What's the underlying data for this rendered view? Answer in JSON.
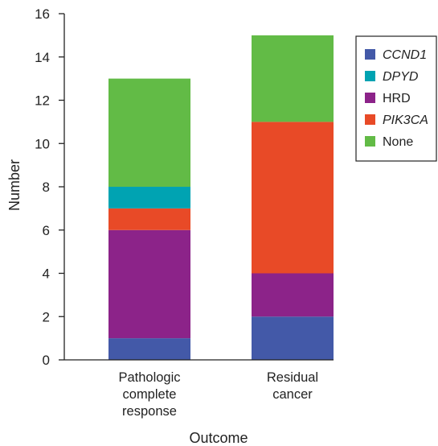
{
  "chart_data": {
    "type": "bar",
    "stacked": true,
    "xlabel": "Outcome",
    "ylabel": "Number",
    "ylim": [
      0,
      16
    ],
    "yticks": [
      0,
      2,
      4,
      6,
      8,
      10,
      12,
      14,
      16
    ],
    "categories": [
      [
        "Pathologic",
        "complete",
        "response"
      ],
      [
        "Residual",
        "cancer"
      ]
    ],
    "series": [
      {
        "name": "CCND1",
        "italic": true,
        "color": "#4359a8",
        "values": [
          1,
          2
        ]
      },
      {
        "name": "HRD",
        "italic": false,
        "color": "#8c2389",
        "values": [
          5,
          2
        ]
      },
      {
        "name": "PIK3CA",
        "italic": true,
        "color": "#e84a27",
        "values": [
          1,
          7
        ]
      },
      {
        "name": "DPYD",
        "italic": true,
        "color": "#00a3b2",
        "values": [
          1,
          0
        ]
      },
      {
        "name": "None",
        "italic": false,
        "color": "#62bb46",
        "values": [
          5,
          4
        ]
      }
    ],
    "legend_order": [
      "CCND1",
      "DPYD",
      "HRD",
      "PIK3CA",
      "None"
    ],
    "legend_position": "top-right",
    "grid": false
  }
}
